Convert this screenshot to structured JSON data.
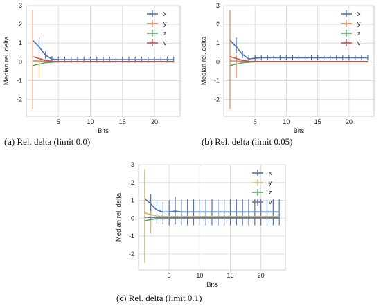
{
  "chart_data": [
    {
      "type": "line",
      "panel_letter": "a",
      "caption_text": "Rel. delta (limit 0.0)",
      "xlabel": "Bits",
      "ylabel": "Median rel. delta",
      "xlim": [
        0,
        24
      ],
      "ylim": [
        -2.9,
        3.0
      ],
      "xticks": [
        5,
        10,
        15,
        20
      ],
      "yticks": [
        -2,
        -1,
        0,
        1,
        2,
        3
      ],
      "grid": true,
      "legend_position": "top-right",
      "x": [
        1,
        2,
        3,
        4,
        5,
        6,
        7,
        8,
        9,
        10,
        11,
        12,
        13,
        14,
        15,
        16,
        17,
        18,
        19,
        20,
        21,
        22,
        23
      ],
      "series": [
        {
          "name": "x",
          "color": "#4c72b0",
          "values": [
            1.15,
            0.8,
            0.35,
            0.15,
            0.12,
            0.12,
            0.12,
            0.12,
            0.12,
            0.12,
            0.12,
            0.12,
            0.12,
            0.12,
            0.12,
            0.12,
            0.12,
            0.12,
            0.12,
            0.12,
            0.12,
            0.12,
            0.12
          ],
          "err_low": [
            null,
            0.4,
            0.15,
            0.0,
            -0.05,
            -0.05,
            -0.05,
            -0.05,
            -0.05,
            -0.05,
            -0.05,
            -0.05,
            -0.05,
            -0.05,
            -0.05,
            -0.05,
            -0.05,
            -0.05,
            -0.05,
            -0.05,
            -0.05,
            -0.05,
            -0.05
          ],
          "err_high": [
            null,
            1.3,
            0.55,
            0.3,
            0.28,
            0.28,
            0.28,
            0.28,
            0.28,
            0.28,
            0.28,
            0.28,
            0.28,
            0.28,
            0.28,
            0.28,
            0.28,
            0.28,
            0.28,
            0.28,
            0.28,
            0.28,
            0.28
          ]
        },
        {
          "name": "y",
          "color": "#dd8452",
          "values": [
            0.05,
            0.05,
            0.03,
            0.02,
            0.02,
            0.02,
            0.02,
            0.02,
            0.02,
            0.02,
            0.02,
            0.02,
            0.02,
            0.02,
            0.02,
            0.02,
            0.02,
            0.02,
            0.02,
            0.02,
            0.02,
            0.02,
            0.02
          ],
          "err_low": [
            -2.5,
            -0.85,
            null,
            null,
            null,
            null,
            null,
            null,
            null,
            null,
            null,
            null,
            null,
            null,
            null,
            null,
            null,
            null,
            null,
            null,
            null,
            null,
            null
          ],
          "err_high": [
            2.75,
            0.4,
            null,
            null,
            null,
            null,
            null,
            null,
            null,
            null,
            null,
            null,
            null,
            null,
            null,
            null,
            null,
            null,
            null,
            null,
            null,
            null,
            null
          ]
        },
        {
          "name": "z",
          "color": "#55a868",
          "values": [
            -0.2,
            -0.12,
            -0.05,
            -0.02,
            0,
            0,
            0,
            0,
            0,
            0,
            0,
            0,
            0,
            0,
            0,
            0,
            0,
            0,
            0,
            0,
            0,
            0,
            0
          ],
          "err_low": [],
          "err_high": []
        },
        {
          "name": "v",
          "color": "#c44e52",
          "values": [
            0.28,
            0.18,
            0.08,
            0.03,
            0.02,
            0.02,
            0.02,
            0.02,
            0.02,
            0.02,
            0.02,
            0.02,
            0.02,
            0.02,
            0.02,
            0.02,
            0.02,
            0.02,
            0.02,
            0.02,
            0.02,
            0.02,
            0.02
          ],
          "err_low": [],
          "err_high": []
        }
      ]
    },
    {
      "type": "line",
      "panel_letter": "b",
      "caption_text": "Rel. delta (limit 0.05)",
      "xlabel": "Bits",
      "ylabel": "Median rel. delta",
      "xlim": [
        0,
        24
      ],
      "ylim": [
        -2.9,
        3.0
      ],
      "xticks": [
        5,
        10,
        15,
        20
      ],
      "yticks": [
        -2,
        -1,
        0,
        1,
        2,
        3
      ],
      "grid": true,
      "legend_position": "top-right",
      "x": [
        1,
        2,
        3,
        4,
        5,
        6,
        7,
        8,
        9,
        10,
        11,
        12,
        13,
        14,
        15,
        16,
        17,
        18,
        19,
        20,
        21,
        22,
        23
      ],
      "series": [
        {
          "name": "x",
          "color": "#4c72b0",
          "values": [
            1.15,
            0.8,
            0.4,
            0.15,
            0.2,
            0.22,
            0.22,
            0.22,
            0.22,
            0.22,
            0.22,
            0.22,
            0.22,
            0.22,
            0.22,
            0.22,
            0.22,
            0.22,
            0.22,
            0.22,
            0.22,
            0.22,
            0.22
          ],
          "err_low": [
            null,
            0.45,
            0.2,
            0.0,
            0.05,
            0.08,
            0.08,
            0.08,
            0.08,
            0.08,
            0.08,
            0.08,
            0.08,
            0.08,
            0.08,
            0.08,
            0.08,
            0.08,
            0.08,
            0.08,
            0.08,
            0.08,
            0.08
          ],
          "err_high": [
            null,
            1.3,
            0.6,
            0.35,
            0.35,
            0.35,
            0.35,
            0.35,
            0.35,
            0.35,
            0.35,
            0.35,
            0.35,
            0.35,
            0.35,
            0.35,
            0.35,
            0.35,
            0.35,
            0.35,
            0.35,
            0.35,
            0.35
          ]
        },
        {
          "name": "y",
          "color": "#dd8452",
          "values": [
            0.05,
            0.05,
            0.03,
            0.02,
            0.02,
            0.02,
            0.02,
            0.02,
            0.02,
            0.02,
            0.02,
            0.02,
            0.02,
            0.02,
            0.02,
            0.02,
            0.02,
            0.02,
            0.02,
            0.02,
            0.02,
            0.02,
            0.02
          ],
          "err_low": [
            -2.5,
            -0.85,
            null,
            null,
            null,
            null,
            null,
            null,
            null,
            null,
            null,
            null,
            null,
            null,
            null,
            null,
            null,
            null,
            null,
            null,
            null,
            null,
            null
          ],
          "err_high": [
            2.75,
            0.4,
            null,
            null,
            null,
            null,
            null,
            null,
            null,
            null,
            null,
            null,
            null,
            null,
            null,
            null,
            null,
            null,
            null,
            null,
            null,
            null,
            null
          ]
        },
        {
          "name": "z",
          "color": "#55a868",
          "values": [
            -0.2,
            -0.12,
            -0.05,
            -0.02,
            0,
            0,
            0,
            0,
            0,
            0,
            0,
            0,
            0,
            0,
            0,
            0,
            0,
            0,
            0,
            0,
            0,
            0,
            0
          ],
          "err_low": [],
          "err_high": []
        },
        {
          "name": "v",
          "color": "#c44e52",
          "values": [
            0.28,
            0.18,
            0.08,
            0.03,
            0.02,
            0.02,
            0.02,
            0.02,
            0.02,
            0.02,
            0.02,
            0.02,
            0.02,
            0.02,
            0.02,
            0.02,
            0.02,
            0.02,
            0.02,
            0.02,
            0.02,
            0.02,
            0.02
          ],
          "err_low": [],
          "err_high": []
        }
      ]
    },
    {
      "type": "line",
      "panel_letter": "c",
      "caption_text": "Rel. delta (limit 0.1)",
      "xlabel": "Bits",
      "ylabel": "Median rel. delta",
      "xlim": [
        0,
        24
      ],
      "ylim": [
        -2.9,
        3.0
      ],
      "xticks": [
        5,
        10,
        15,
        20
      ],
      "yticks": [
        -2,
        -1,
        0,
        1,
        2,
        3
      ],
      "grid": true,
      "legend_position": "top-right",
      "x": [
        1,
        2,
        3,
        4,
        5,
        6,
        7,
        8,
        9,
        10,
        11,
        12,
        13,
        14,
        15,
        16,
        17,
        18,
        19,
        20,
        21,
        22,
        23
      ],
      "series": [
        {
          "name": "x",
          "color": "#4c72b0",
          "values": [
            1.1,
            0.8,
            0.45,
            0.35,
            0.35,
            0.4,
            0.35,
            0.35,
            0.35,
            0.35,
            0.35,
            0.35,
            0.35,
            0.35,
            0.35,
            0.35,
            0.35,
            0.35,
            0.35,
            0.35,
            0.35,
            0.35,
            0.35
          ],
          "err_low": [
            null,
            -0.2,
            -0.3,
            -0.35,
            -0.4,
            -0.35,
            -0.4,
            -0.4,
            -0.4,
            -0.4,
            -0.4,
            -0.4,
            -0.4,
            -0.4,
            -0.4,
            -0.4,
            -0.4,
            -0.4,
            -0.4,
            -0.4,
            -0.4,
            -0.4,
            -0.4
          ],
          "err_high": [
            null,
            1.35,
            1.05,
            0.9,
            1.0,
            1.2,
            1.05,
            1.05,
            1.05,
            1.05,
            1.05,
            1.05,
            1.05,
            1.05,
            1.05,
            1.05,
            1.05,
            1.05,
            1.05,
            1.05,
            1.05,
            1.05,
            1.05
          ]
        },
        {
          "name": "y",
          "color": "#ccb974",
          "values": [
            0.3,
            0.2,
            0.12,
            0.1,
            0.1,
            0.1,
            0.1,
            0.1,
            0.1,
            0.1,
            0.1,
            0.1,
            0.1,
            0.1,
            0.1,
            0.1,
            0.1,
            0.1,
            0.1,
            0.1,
            0.1,
            0.1,
            0.1
          ],
          "err_low": [
            -2.5,
            -0.85,
            null,
            null,
            null,
            null,
            null,
            null,
            null,
            null,
            null,
            null,
            null,
            null,
            null,
            null,
            null,
            null,
            null,
            null,
            null,
            null,
            null
          ],
          "err_high": [
            2.75,
            0.4,
            null,
            null,
            null,
            null,
            null,
            null,
            null,
            null,
            null,
            null,
            null,
            null,
            null,
            null,
            null,
            null,
            null,
            null,
            null,
            null,
            null
          ]
        },
        {
          "name": "z",
          "color": "#55a868",
          "values": [
            -0.15,
            -0.08,
            -0.03,
            -0.01,
            0,
            0,
            0,
            0,
            0,
            0,
            0,
            0,
            0,
            0,
            0,
            0,
            0,
            0,
            0,
            0,
            0,
            0,
            0
          ],
          "err_low": [],
          "err_high": []
        },
        {
          "name": "v",
          "color": "#8172b2",
          "values": [
            0.05,
            0.04,
            0.03,
            0.03,
            0.03,
            0.03,
            0.03,
            0.03,
            0.03,
            0.03,
            0.03,
            0.03,
            0.03,
            0.03,
            0.03,
            0.03,
            0.03,
            0.03,
            0.03,
            0.03,
            0.03,
            0.03,
            0.03
          ],
          "err_low": [],
          "err_high": []
        }
      ]
    }
  ]
}
